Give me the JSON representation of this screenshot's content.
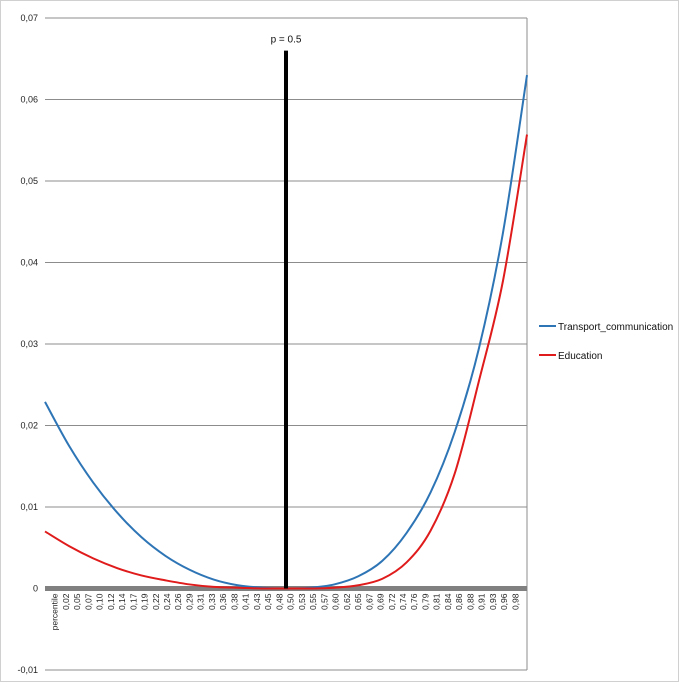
{
  "chart_data": {
    "type": "line",
    "title": "",
    "xlabel": "",
    "ylabel": "",
    "x_first_label": "percentile",
    "x_tick_labels": [
      "0,02",
      "0,05",
      "0,07",
      "0,10",
      "0,12",
      "0,14",
      "0,17",
      "0,19",
      "0,22",
      "0,24",
      "0,26",
      "0,29",
      "0,31",
      "0,33",
      "0,36",
      "0,38",
      "0,41",
      "0,43",
      "0,45",
      "0,48",
      "0,50",
      "0,53",
      "0,55",
      "0,57",
      "0,60",
      "0,62",
      "0,65",
      "0,67",
      "0,69",
      "0,72",
      "0,74",
      "0,76",
      "0,79",
      "0,81",
      "0,84",
      "0,86",
      "0,88",
      "0,91",
      "0,93",
      "0,96",
      "0,98"
    ],
    "y_tick_labels": [
      "0,07",
      "0,06",
      "0,05",
      "0,04",
      "0,03",
      "0,02",
      "0,01",
      "0",
      "-0,01"
    ],
    "ylim": [
      -0.01,
      0.07
    ],
    "xlim": [
      0,
      1
    ],
    "grid": true,
    "legend_position": "right",
    "annotation": {
      "label": "p = 0.5",
      "x": 0.5,
      "y_top": 0.066,
      "color": "#000000"
    },
    "baseline": {
      "y": 0,
      "color": "#808080"
    },
    "series": [
      {
        "name": "Transport_communication",
        "color": "#2e75b6",
        "x": [
          0.0,
          0.05,
          0.1,
          0.15,
          0.2,
          0.25,
          0.3,
          0.35,
          0.4,
          0.45,
          0.5,
          0.55,
          0.6,
          0.65,
          0.7,
          0.75,
          0.8,
          0.85,
          0.9,
          0.95,
          1.0
        ],
        "y": [
          0.0229,
          0.0175,
          0.013,
          0.0093,
          0.0063,
          0.004,
          0.0023,
          0.0011,
          0.0004,
          0.0001,
          0.0,
          0.0001,
          0.0005,
          0.0015,
          0.0034,
          0.0068,
          0.0118,
          0.0192,
          0.0294,
          0.0436,
          0.063
        ]
      },
      {
        "name": "Education",
        "color": "#e01b1b",
        "x": [
          0.0,
          0.05,
          0.1,
          0.15,
          0.2,
          0.25,
          0.3,
          0.35,
          0.4,
          0.45,
          0.5,
          0.55,
          0.6,
          0.65,
          0.7,
          0.75,
          0.8,
          0.85,
          0.9,
          0.95,
          1.0
        ],
        "y": [
          0.007,
          0.0052,
          0.0037,
          0.0025,
          0.0016,
          0.001,
          0.0005,
          0.0002,
          0.0001,
          0.0,
          0.0,
          0.0,
          0.0001,
          0.0004,
          0.0012,
          0.0032,
          0.0071,
          0.0141,
          0.0254,
          0.0377,
          0.0557
        ]
      }
    ]
  }
}
